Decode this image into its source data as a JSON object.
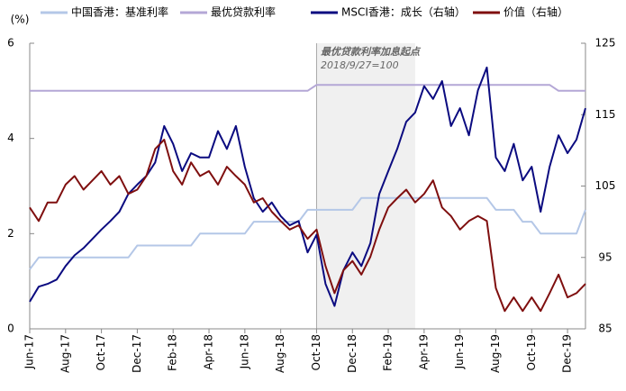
{
  "chart_data": {
    "type": "line",
    "y_label": "(%)",
    "categories": [
      "Jun-17",
      null,
      null,
      null,
      "Aug-17",
      null,
      null,
      null,
      "Oct-17",
      null,
      null,
      null,
      "Dec-17",
      null,
      null,
      null,
      "Feb-18",
      null,
      null,
      null,
      "Apr-18",
      null,
      null,
      null,
      "Jun-18",
      null,
      null,
      null,
      "Aug-18",
      null,
      null,
      null,
      "Oct-18",
      null,
      null,
      null,
      "Dec-18",
      null,
      null,
      null,
      "Feb-19",
      null,
      null,
      null,
      "Apr-19",
      null,
      null,
      null,
      "Jun-19",
      null,
      null,
      null,
      "Aug-19",
      null,
      null,
      null,
      "Oct-19",
      null,
      null,
      null,
      "Dec-19",
      null,
      null
    ],
    "ylim": [
      0,
      6
    ],
    "yticks": [
      0,
      2,
      4,
      6
    ],
    "y2lim": [
      85,
      125
    ],
    "y2ticks": [
      85,
      95,
      105,
      115,
      125
    ],
    "grid": false,
    "shaded_range": [
      32,
      43
    ],
    "annotations": [
      "最优贷款利率加息起点",
      "2018/9/27=100"
    ],
    "series": [
      {
        "name": "中国香港：基准利率",
        "color": "#b4c7e7",
        "values": [
          1.25,
          1.5,
          1.5,
          1.5,
          1.5,
          1.5,
          1.5,
          1.5,
          1.5,
          1.5,
          1.5,
          1.5,
          1.75,
          1.75,
          1.75,
          1.75,
          1.75,
          1.75,
          1.75,
          2.0,
          2.0,
          2.0,
          2.0,
          2.0,
          2.0,
          2.25,
          2.25,
          2.25,
          2.25,
          2.25,
          2.25,
          2.5,
          2.5,
          2.5,
          2.5,
          2.5,
          2.5,
          2.75,
          2.75,
          2.75,
          2.75,
          2.75,
          2.75,
          2.75,
          2.75,
          2.75,
          2.75,
          2.75,
          2.75,
          2.75,
          2.75,
          2.75,
          2.5,
          2.5,
          2.5,
          2.25,
          2.25,
          2.0,
          2.0,
          2.0,
          2.0,
          2.0,
          2.5
        ]
      },
      {
        "name": "最优贷款利率",
        "color": "#b4a7d6",
        "values": [
          5.0,
          5.0,
          5.0,
          5.0,
          5.0,
          5.0,
          5.0,
          5.0,
          5.0,
          5.0,
          5.0,
          5.0,
          5.0,
          5.0,
          5.0,
          5.0,
          5.0,
          5.0,
          5.0,
          5.0,
          5.0,
          5.0,
          5.0,
          5.0,
          5.0,
          5.0,
          5.0,
          5.0,
          5.0,
          5.0,
          5.0,
          5.0,
          5.125,
          5.125,
          5.125,
          5.125,
          5.125,
          5.125,
          5.125,
          5.125,
          5.125,
          5.125,
          5.125,
          5.125,
          5.125,
          5.125,
          5.125,
          5.125,
          5.125,
          5.125,
          5.125,
          5.125,
          5.125,
          5.125,
          5.125,
          5.125,
          5.125,
          5.125,
          5.125,
          5.0,
          5.0,
          5.0,
          5.0
        ]
      },
      {
        "name": "MSCI香港：成长（右轴）",
        "color": "#0b0b80",
        "axis": "y2",
        "values": [
          88.8,
          90.9,
          91.3,
          91.9,
          93.8,
          95.3,
          96.3,
          97.6,
          98.9,
          100.1,
          101.4,
          103.9,
          105.2,
          106.4,
          108.3,
          113.4,
          110.9,
          107.1,
          109.6,
          109.0,
          109.0,
          112.7,
          110.2,
          113.4,
          107.7,
          103.3,
          101.4,
          102.7,
          100.8,
          99.5,
          100.1,
          95.7,
          98.2,
          91.3,
          88.2,
          93.2,
          95.7,
          93.8,
          97.0,
          103.9,
          107.1,
          110.2,
          114.0,
          115.3,
          119.0,
          117.2,
          119.7,
          113.4,
          115.9,
          112.1,
          118.4,
          121.6,
          109.0,
          107.1,
          110.9,
          105.8,
          107.7,
          101.4,
          107.7,
          112.1,
          109.6,
          111.5,
          115.9
        ]
      },
      {
        "name": "价值（右轴）",
        "color": "#7f0f0f",
        "axis": "y2",
        "values": [
          102.0,
          100.1,
          102.7,
          102.7,
          105.2,
          106.4,
          104.5,
          105.8,
          107.1,
          105.2,
          106.4,
          103.9,
          104.5,
          106.4,
          110.2,
          111.5,
          107.1,
          105.2,
          108.3,
          106.4,
          107.1,
          105.2,
          107.7,
          106.4,
          105.2,
          102.7,
          103.3,
          101.4,
          100.1,
          98.9,
          99.5,
          97.6,
          98.9,
          93.8,
          90.0,
          93.2,
          94.5,
          92.6,
          95.1,
          98.9,
          102.0,
          103.3,
          104.5,
          102.7,
          103.9,
          105.8,
          102.0,
          100.8,
          98.9,
          100.1,
          100.8,
          100.1,
          90.7,
          87.5,
          89.4,
          87.5,
          89.4,
          87.5,
          90.0,
          92.6,
          89.4,
          90.0,
          91.3
        ]
      }
    ]
  }
}
